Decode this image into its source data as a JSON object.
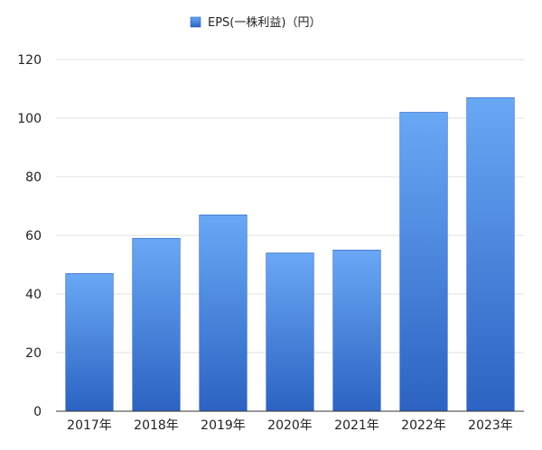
{
  "chart_data": {
    "type": "bar",
    "categories": [
      "2017年",
      "2018年",
      "2019年",
      "2020年",
      "2021年",
      "2022年",
      "2023年"
    ],
    "series": [
      {
        "name": "EPS(一株利益)（円）",
        "values": [
          47,
          59,
          67,
          54,
          55,
          102,
          107
        ]
      }
    ],
    "title": "",
    "xlabel": "",
    "ylabel": "",
    "ylim": [
      0,
      120
    ],
    "yticks": [
      "0",
      "20",
      "40",
      "60",
      "80",
      "100",
      "120"
    ],
    "grid": true,
    "legend_position": "top-center",
    "colors": {
      "bar_top": "#69a8f5",
      "bar_bottom": "#2c63c2",
      "bar_edge": "#2a5db5",
      "grid": "#e2e2e2",
      "axis": "#333333"
    }
  }
}
